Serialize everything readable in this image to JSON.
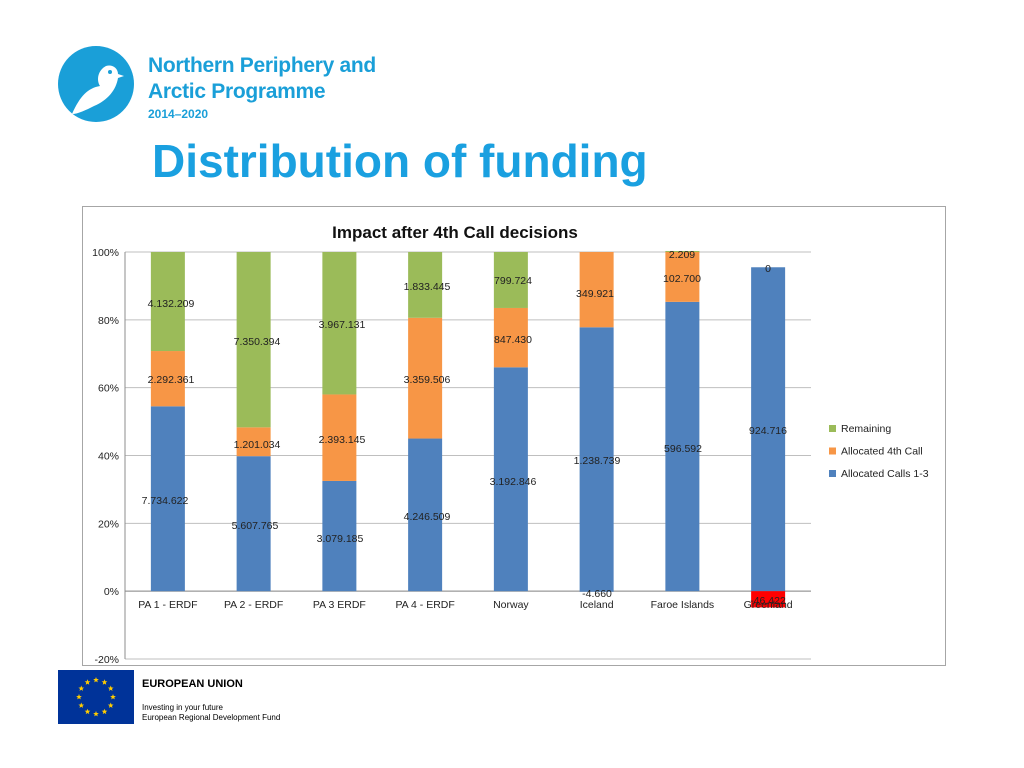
{
  "header": {
    "logo_line1": "Northern Periphery and",
    "logo_line2": "Arctic Programme",
    "logo_years": "2014–2020",
    "logo_icon": "bird-in-circle-icon"
  },
  "page_title": "Distribution of funding",
  "chart_data": {
    "type": "bar",
    "stacked": "percent",
    "title": "Impact after 4th Call decisions",
    "xlabel": "",
    "ylabel": "",
    "ylim": [
      -0.2,
      1.0
    ],
    "y_ticks": [
      "-20%",
      "0%",
      "20%",
      "40%",
      "60%",
      "80%",
      "100%"
    ],
    "grid": true,
    "legend_position": "right",
    "categories": [
      "PA 1 - ERDF",
      "PA 2 - ERDF",
      "PA 3 ERDF",
      "PA 4 - ERDF",
      "Norway",
      "Iceland",
      "Faroe Islands",
      "Greenland"
    ],
    "series": [
      {
        "name": "Allocated Calls 1-3",
        "color": "#4f81bd",
        "labels": [
          "7.734.622",
          "5.607.765",
          "3.079.185",
          "4.246.509",
          "3.192.846",
          "1.238.739",
          "596.592",
          "924.716"
        ],
        "share": [
          0.545,
          0.398,
          0.325,
          0.45,
          0.66,
          0.778,
          0.853,
          0.955
        ]
      },
      {
        "name": "Allocated 4th Call",
        "color": "#f79646",
        "labels": [
          "2.292.361",
          "1.201.034",
          "2.393.145",
          "3.359.506",
          "847.430",
          "349.921",
          "102.700",
          ""
        ],
        "share": [
          0.163,
          0.085,
          0.255,
          0.356,
          0.175,
          0.222,
          0.147,
          0
        ]
      },
      {
        "name": "Remaining",
        "color": "#9bbb59",
        "labels": [
          "4.132.209",
          "7.350.394",
          "3.967.131",
          "1.833.445",
          "799.724",
          "",
          "2.209",
          "0"
        ],
        "share": [
          0.292,
          0.517,
          0.42,
          0.194,
          0.165,
          0,
          0.003,
          0
        ]
      }
    ],
    "negatives": [
      {
        "category": "Iceland",
        "label": "-4.660",
        "share": -0.002,
        "color": "#4f81bd"
      },
      {
        "category": "Greenland",
        "label": "-46.422",
        "share": -0.048,
        "color": "#ff0000"
      }
    ]
  },
  "footer": {
    "eu_flag_icon": "eu-flag-icon",
    "eu_title": "EUROPEAN UNION",
    "eu_line1": "Investing in your future",
    "eu_line2": "European Regional Development Fund"
  }
}
